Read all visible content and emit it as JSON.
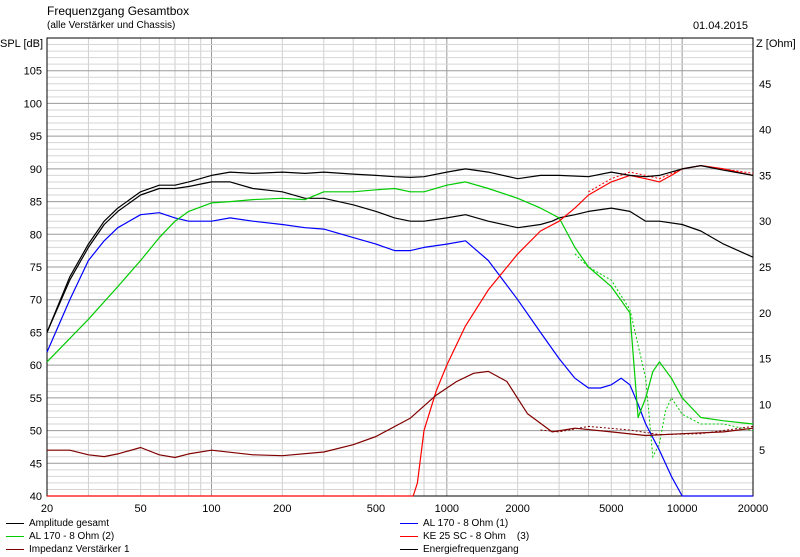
{
  "header": {
    "title": "Frequenzgang Gesamtbox",
    "subtitle": "(alle Verstärker und Chassis)",
    "date": "01.04.2015"
  },
  "chart_data": {
    "type": "line",
    "title": "Frequenzgang Gesamtbox",
    "subtitle": "(alle Verstärker und Chassis)",
    "x_scale": "log",
    "xlim": [
      20,
      20000
    ],
    "x_ticks": [
      20,
      50,
      100,
      200,
      500,
      1000,
      2000,
      5000,
      10000,
      20000
    ],
    "ylabel_left": "SPL [dB]",
    "ylim_left": [
      40,
      110
    ],
    "y_ticks_left": [
      40,
      45,
      50,
      55,
      60,
      65,
      70,
      75,
      80,
      85,
      90,
      95,
      100,
      105
    ],
    "ylabel_right": "Z [Ohm]",
    "ylim_right": [
      0,
      50
    ],
    "y_ticks_right": [
      5,
      10,
      15,
      20,
      25,
      30,
      35,
      40,
      45
    ],
    "grid": true,
    "legend_position": "bottom",
    "series": [
      {
        "name": "Amplitude gesamt",
        "color": "#000000",
        "axis": "left",
        "x": [
          20,
          25,
          30,
          35,
          40,
          50,
          60,
          70,
          80,
          100,
          120,
          150,
          200,
          250,
          300,
          400,
          500,
          600,
          700,
          800,
          1000,
          1200,
          1500,
          2000,
          2500,
          2800,
          3000,
          3500,
          4000,
          5000,
          6000,
          7000,
          8000,
          10000,
          12000,
          15000,
          20000
        ],
        "y": [
          65,
          73,
          78,
          81.5,
          83.5,
          86,
          87,
          87,
          87.3,
          88,
          88,
          87,
          86.5,
          85.5,
          85.5,
          84.5,
          83.5,
          82.5,
          82,
          82,
          82.5,
          83,
          82,
          81,
          81.5,
          82,
          82.5,
          83,
          83.5,
          84,
          83.5,
          82,
          82,
          81.5,
          80.5,
          78.5,
          76.5
        ]
      },
      {
        "name": "AL 170 - 8 Ohm (1)",
        "color": "#0000ff",
        "axis": "left",
        "x": [
          20,
          25,
          30,
          35,
          40,
          50,
          60,
          70,
          80,
          100,
          120,
          150,
          200,
          250,
          300,
          400,
          500,
          600,
          700,
          800,
          1000,
          1200,
          1500,
          2000,
          2500,
          3000,
          3500,
          4000,
          4500,
          5000,
          5500,
          6000,
          6500,
          7000,
          8000,
          9000,
          10000,
          12000,
          15000,
          20000
        ],
        "y": [
          62,
          70,
          76,
          79,
          81,
          83,
          83.3,
          82.5,
          82,
          82,
          82.5,
          82,
          81.5,
          81,
          80.8,
          79.5,
          78.5,
          77.5,
          77.5,
          78,
          78.5,
          79,
          76,
          70,
          65,
          61,
          58,
          56.5,
          56.5,
          57,
          58,
          57,
          54,
          51,
          47,
          43,
          40,
          40,
          40,
          40
        ]
      },
      {
        "name": "AL 170 - 8 Ohm (2)",
        "color": "#00cc00",
        "axis": "left",
        "x": [
          20,
          30,
          40,
          50,
          60,
          70,
          80,
          100,
          120,
          150,
          200,
          250,
          300,
          400,
          500,
          600,
          700,
          800,
          1000,
          1200,
          1500,
          2000,
          2500,
          3000,
          3500,
          4000,
          5000,
          6000,
          6500,
          7000,
          7500,
          8000,
          9000,
          10000,
          12000,
          15000,
          20000
        ],
        "y": [
          60.5,
          67,
          72,
          76,
          79.5,
          82,
          83.5,
          84.8,
          85,
          85.3,
          85.5,
          85.3,
          86.5,
          86.5,
          86.8,
          87,
          86.5,
          86.5,
          87.5,
          88,
          87,
          85.5,
          84,
          82.5,
          78,
          75,
          72,
          68,
          52,
          55,
          59,
          60.5,
          58,
          55,
          52,
          51.5,
          51
        ]
      },
      {
        "name": "KE 25 SC - 8 Ohm    (3)",
        "color": "#ff0000",
        "axis": "left",
        "x": [
          20,
          100,
          500,
          720,
          750,
          800,
          900,
          1000,
          1200,
          1500,
          2000,
          2500,
          3000,
          3500,
          4000,
          5000,
          6000,
          7000,
          8000,
          9000,
          10000,
          12000,
          15000,
          20000
        ],
        "y": [
          40,
          40,
          40,
          40,
          42,
          50,
          56,
          60,
          66,
          71.5,
          77,
          80.5,
          82,
          84,
          86,
          88,
          89,
          88.5,
          88,
          89,
          90,
          90.5,
          90,
          89
        ]
      },
      {
        "name": "Impedanz Verstärker 1",
        "color": "#800000",
        "axis": "right",
        "x": [
          20,
          25,
          30,
          35,
          40,
          50,
          60,
          70,
          80,
          100,
          150,
          200,
          300,
          400,
          500,
          700,
          900,
          1100,
          1300,
          1500,
          1800,
          2200,
          2800,
          3500,
          5000,
          7000,
          10000,
          15000,
          20000
        ],
        "y": [
          5,
          5,
          4.5,
          4.3,
          4.6,
          5.3,
          4.5,
          4.2,
          4.6,
          5,
          4.5,
          4.4,
          4.8,
          5.6,
          6.5,
          8.5,
          11,
          12.5,
          13.4,
          13.6,
          12.5,
          9,
          7,
          7.4,
          7,
          6.6,
          6.8,
          7,
          7.4
        ]
      },
      {
        "name": "Energiefrequenzgang",
        "color": "#000000",
        "axis": "left",
        "x": [
          20,
          25,
          30,
          35,
          40,
          50,
          60,
          70,
          80,
          100,
          120,
          150,
          200,
          250,
          300,
          400,
          500,
          600,
          700,
          800,
          1000,
          1200,
          1500,
          2000,
          2500,
          3000,
          4000,
          5000,
          6000,
          7000,
          8000,
          10000,
          12000,
          15000,
          20000
        ],
        "y": [
          65,
          73.5,
          78.5,
          82,
          84,
          86.5,
          87.5,
          87.5,
          88,
          89,
          89.5,
          89.3,
          89.5,
          89.3,
          89.5,
          89.2,
          89,
          88.8,
          88.7,
          88.8,
          89.5,
          90,
          89.5,
          88.5,
          89,
          89,
          88.8,
          89.5,
          89,
          88.8,
          89,
          90,
          90.5,
          89.8,
          89
        ]
      }
    ],
    "dotted_series": [
      {
        "color": "#00cc00",
        "axis": "left",
        "x": [
          3500,
          4000,
          5000,
          6000,
          7000,
          7500,
          8000,
          8500,
          9000,
          10000,
          12000,
          15000,
          20000
        ],
        "y": [
          77,
          75,
          73,
          68.5,
          58,
          46,
          48,
          53,
          55,
          52.5,
          51,
          51,
          50
        ]
      },
      {
        "color": "#ff0000",
        "axis": "left",
        "x": [
          4000,
          5000,
          6000,
          7000,
          8000,
          10000,
          12000,
          15000,
          20000
        ],
        "y": [
          86.5,
          88.5,
          89.5,
          89,
          88.5,
          90,
          90.5,
          90,
          89.3
        ]
      },
      {
        "color": "#800000",
        "axis": "right",
        "x": [
          2500,
          3000,
          4000,
          6000,
          8000,
          12000,
          20000
        ],
        "y": [
          7.2,
          7,
          7.6,
          7.2,
          6.7,
          6.8,
          7.6
        ]
      }
    ]
  },
  "legend": {
    "items": [
      {
        "label": "Amplitude gesamt",
        "color": "#000000"
      },
      {
        "label": "AL 170 - 8 Ohm (1)",
        "color": "#0000ff"
      },
      {
        "label": "AL 170 - 8 Ohm (2)",
        "color": "#00cc00"
      },
      {
        "label": "KE 25 SC - 8 Ohm    (3)",
        "color": "#ff0000"
      },
      {
        "label": "Impedanz Verstärker 1",
        "color": "#800000"
      },
      {
        "label": "Energiefrequenzgang",
        "color": "#000000"
      }
    ]
  }
}
